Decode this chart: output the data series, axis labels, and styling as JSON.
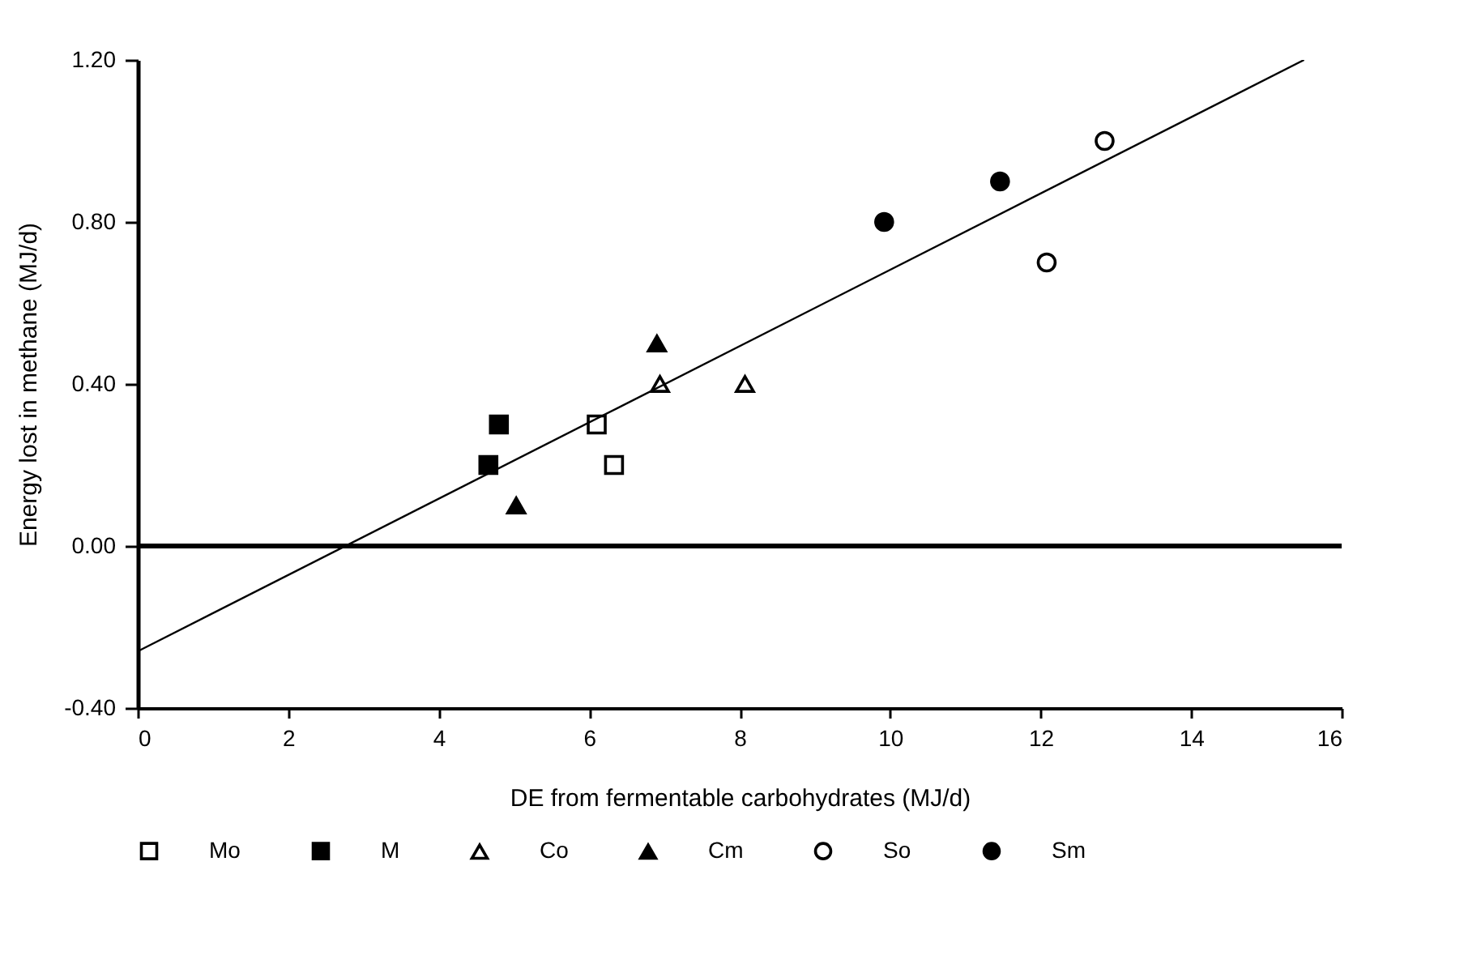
{
  "chart_data": {
    "type": "scatter",
    "xlabel": "DE from fermentable carbohydrates (MJ/d)",
    "ylabel": "Energy lost in methane (MJ/d)",
    "xlim": [
      0,
      16
    ],
    "xticks": [
      0,
      2,
      4,
      6,
      8,
      10,
      12,
      14,
      16
    ],
    "ylim": [
      -0.4,
      1.2
    ],
    "yticks": [
      {
        "value": -0.4,
        "label": "-0.40"
      },
      {
        "value": 0,
        "label": "0.00"
      },
      {
        "value": 0.4,
        "label": "0.40"
      },
      {
        "value": 0.8,
        "label": "0.80"
      },
      {
        "value": 1.2,
        "label": "1.20"
      }
    ],
    "grid": false,
    "legend": "bottom",
    "series": [
      {
        "name": "Mo",
        "color": "#ffffff",
        "marker": "square",
        "x": [
          6.1,
          6.33
        ],
        "values": [
          0.3,
          0.2
        ]
      },
      {
        "name": "M",
        "color": "#000000",
        "marker": "square",
        "x": [
          4.66,
          4.8
        ],
        "values": [
          0.2,
          0.3
        ]
      },
      {
        "name": "Co",
        "color": "#ffffff",
        "marker": "triangle",
        "x": [
          6.94,
          8.07
        ],
        "values": [
          0.4,
          0.4
        ]
      },
      {
        "name": "Cm",
        "color": "#000000",
        "marker": "triangle",
        "x": [
          5.03,
          6.9
        ],
        "values": [
          0.1,
          0.5
        ]
      },
      {
        "name": "So",
        "color": "#ffffff",
        "marker": "circle",
        "x": [
          12.08,
          12.85
        ],
        "values": [
          0.7,
          1.0
        ]
      },
      {
        "name": "Sm",
        "color": "#000000",
        "marker": "circle",
        "x": [
          9.92,
          11.46
        ],
        "values": [
          0.8,
          0.9
        ]
      },
      {
        "type": "line",
        "color": "#000000",
        "marker": "none",
        "line_style": "solid",
        "x": [
          0,
          15.5
        ],
        "values": [
          -0.26,
          1.2
        ]
      }
    ],
    "ref_lines": [
      {
        "axis": "y",
        "value": 0,
        "color": "#000000",
        "line_style": "solid"
      }
    ]
  }
}
